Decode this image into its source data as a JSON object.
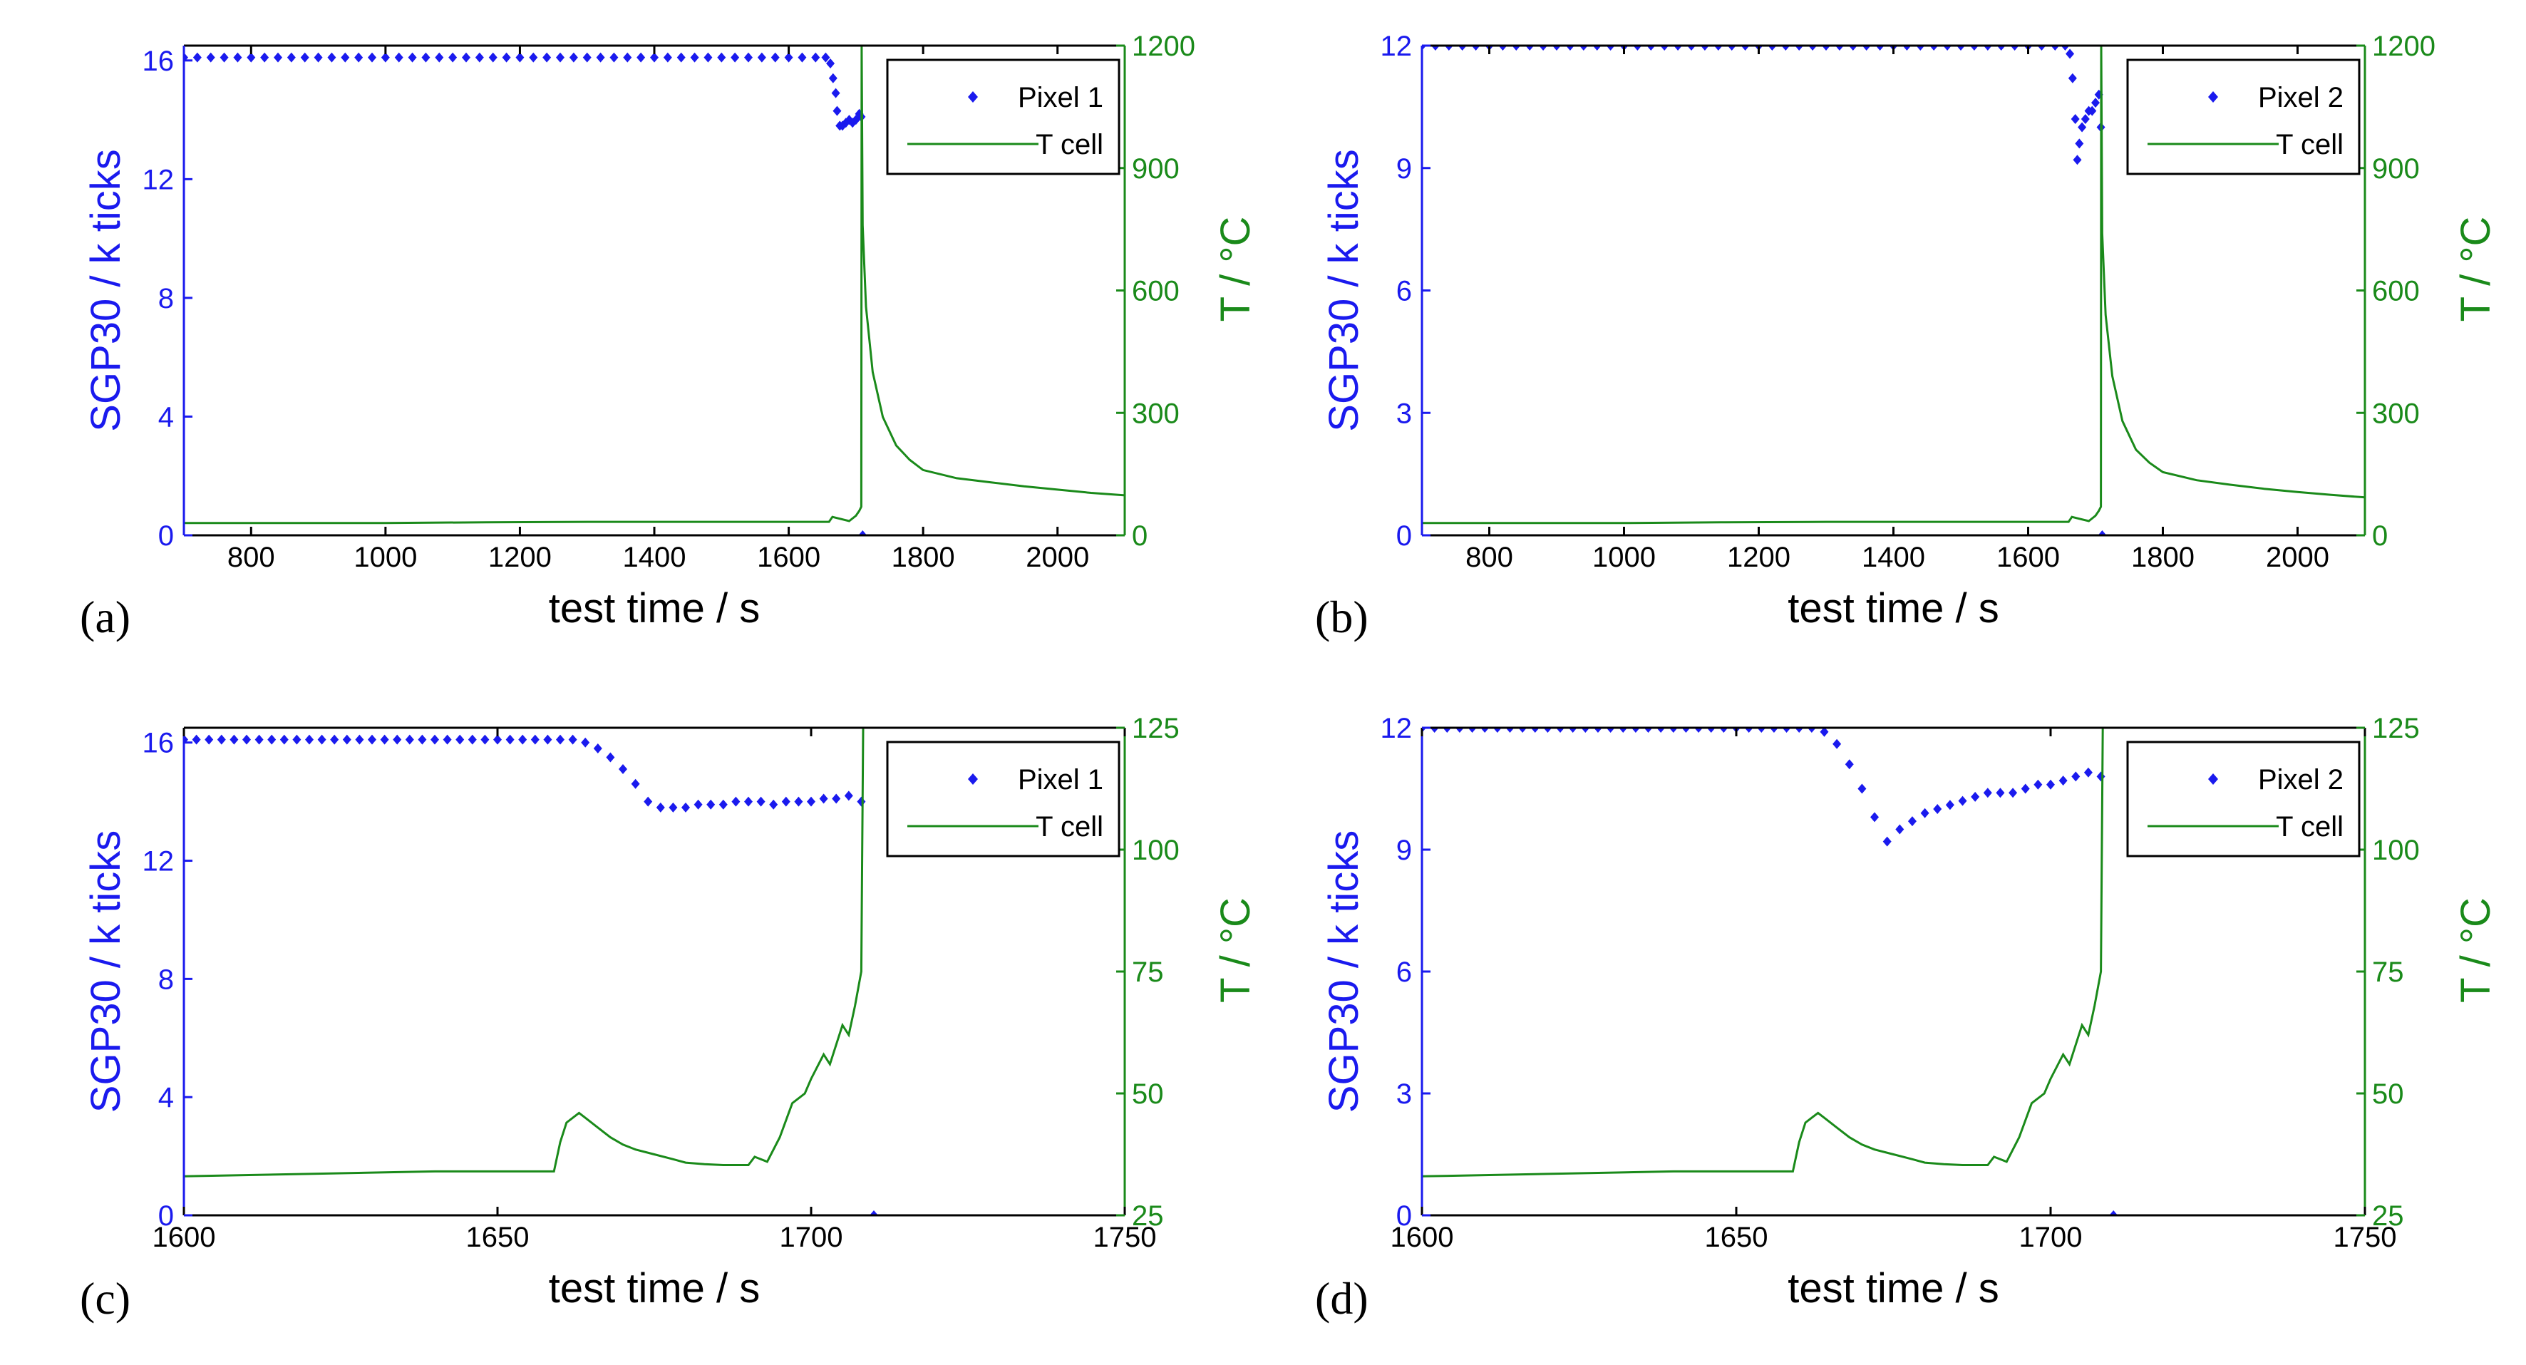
{
  "colors": {
    "left": "#1a1aee",
    "right": "#1a8a1a",
    "axis": "#000000",
    "frame": "#000000"
  },
  "chart_data": [
    {
      "panel_label": "(a)",
      "type": "line",
      "xlabel": "test time / s",
      "ylabel_left": "SGP30 / k ticks",
      "ylabel_right": "T / °C",
      "xlim": [
        700,
        2100
      ],
      "xticks": [
        800,
        1000,
        1200,
        1400,
        1600,
        1800,
        2000
      ],
      "xtick_labels": [
        "800",
        "1000",
        "1200",
        "1400",
        "1600",
        "1800",
        "2000"
      ],
      "ylim_left": [
        0,
        16.5
      ],
      "yticks_left": [
        0,
        4,
        8,
        12,
        16
      ],
      "ytick_labels_left": [
        "0",
        "4",
        "8",
        "12",
        "16"
      ],
      "ylim_right": [
        0,
        1200
      ],
      "yticks_right": [
        0,
        300,
        600,
        900,
        1200
      ],
      "ytick_labels_right": [
        "0",
        "300",
        "600",
        "900",
        "1200"
      ],
      "legend": [
        "Pixel 1",
        "T cell"
      ],
      "legend_position": "top-right",
      "series": [
        {
          "name": "Pixel 1",
          "kind": "markers",
          "axis": "left",
          "x": [
            700,
            720,
            740,
            760,
            780,
            800,
            820,
            840,
            860,
            880,
            900,
            920,
            940,
            960,
            980,
            1000,
            1020,
            1040,
            1060,
            1080,
            1100,
            1120,
            1140,
            1160,
            1180,
            1200,
            1220,
            1240,
            1260,
            1280,
            1300,
            1320,
            1340,
            1360,
            1380,
            1400,
            1420,
            1440,
            1460,
            1480,
            1500,
            1520,
            1540,
            1560,
            1580,
            1600,
            1620,
            1640,
            1655,
            1662,
            1666,
            1670,
            1672,
            1676,
            1680,
            1685,
            1690,
            1695,
            1700,
            1705,
            1708,
            1710
          ],
          "y": [
            16.1,
            16.1,
            16.1,
            16.1,
            16.1,
            16.1,
            16.1,
            16.1,
            16.1,
            16.1,
            16.1,
            16.1,
            16.1,
            16.1,
            16.1,
            16.1,
            16.1,
            16.1,
            16.1,
            16.1,
            16.1,
            16.1,
            16.1,
            16.1,
            16.1,
            16.1,
            16.1,
            16.1,
            16.1,
            16.1,
            16.1,
            16.1,
            16.1,
            16.1,
            16.1,
            16.1,
            16.1,
            16.1,
            16.1,
            16.1,
            16.1,
            16.1,
            16.1,
            16.1,
            16.1,
            16.1,
            16.1,
            16.1,
            16.1,
            15.9,
            15.4,
            14.9,
            14.3,
            13.8,
            13.8,
            13.9,
            14.0,
            13.9,
            14.0,
            14.2,
            14.1,
            0
          ]
        },
        {
          "name": "T cell",
          "kind": "line",
          "axis": "right",
          "x": [
            700,
            1000,
            1150,
            1300,
            1500,
            1660,
            1665,
            1690,
            1700,
            1705,
            1708,
            1708.5,
            1710,
            1715,
            1725,
            1740,
            1760,
            1780,
            1800,
            1850,
            1900,
            1950,
            2000,
            2050,
            2100
          ],
          "y": [
            30,
            30,
            32,
            33,
            33,
            33,
            45,
            35,
            48,
            60,
            70,
            1200,
            760,
            560,
            400,
            290,
            220,
            185,
            160,
            140,
            130,
            120,
            112,
            104,
            98
          ]
        }
      ]
    },
    {
      "panel_label": "(b)",
      "type": "line",
      "xlabel": "test time / s",
      "ylabel_left": "SGP30 / k ticks",
      "ylabel_right": "T / °C",
      "xlim": [
        700,
        2100
      ],
      "xticks": [
        800,
        1000,
        1200,
        1400,
        1600,
        1800,
        2000
      ],
      "xtick_labels": [
        "800",
        "1000",
        "1200",
        "1400",
        "1600",
        "1800",
        "2000"
      ],
      "ylim_left": [
        0,
        12
      ],
      "yticks_left": [
        0,
        3,
        6,
        9,
        12
      ],
      "ytick_labels_left": [
        "0",
        "3",
        "6",
        "9",
        "12"
      ],
      "ylim_right": [
        0,
        1200
      ],
      "yticks_right": [
        0,
        300,
        600,
        900,
        1200
      ],
      "ytick_labels_right": [
        "0",
        "300",
        "600",
        "900",
        "1200"
      ],
      "legend": [
        "Pixel 2",
        "T cell"
      ],
      "legend_position": "top-right",
      "series": [
        {
          "name": "Pixel 2",
          "kind": "markers",
          "axis": "left",
          "x": [
            700,
            720,
            740,
            760,
            780,
            800,
            820,
            840,
            860,
            880,
            900,
            920,
            940,
            960,
            980,
            1000,
            1020,
            1040,
            1060,
            1080,
            1100,
            1120,
            1140,
            1160,
            1180,
            1200,
            1220,
            1240,
            1260,
            1280,
            1300,
            1320,
            1340,
            1360,
            1380,
            1400,
            1420,
            1440,
            1460,
            1480,
            1500,
            1520,
            1540,
            1560,
            1580,
            1600,
            1620,
            1640,
            1655,
            1662,
            1666,
            1670,
            1673,
            1676,
            1680,
            1685,
            1690,
            1695,
            1700,
            1705,
            1708,
            1710
          ],
          "y": [
            12.0,
            12.0,
            12.0,
            12.0,
            12.0,
            12.0,
            12.0,
            12.0,
            12.0,
            12.0,
            12.0,
            12.0,
            12.0,
            12.0,
            12.0,
            12.0,
            12.0,
            12.0,
            12.0,
            12.0,
            12.0,
            12.0,
            12.0,
            12.0,
            12.0,
            12.0,
            12.0,
            12.0,
            12.0,
            12.0,
            12.0,
            12.0,
            12.0,
            12.0,
            12.0,
            12.0,
            12.0,
            12.0,
            12.0,
            12.0,
            12.0,
            12.0,
            12.0,
            12.0,
            12.0,
            12.0,
            12.0,
            12.0,
            12.0,
            11.8,
            11.2,
            10.2,
            9.2,
            9.6,
            10.0,
            10.2,
            10.4,
            10.4,
            10.6,
            10.8,
            10.0,
            0
          ]
        },
        {
          "name": "T cell",
          "kind": "line",
          "axis": "right",
          "x": [
            700,
            1000,
            1150,
            1300,
            1500,
            1660,
            1665,
            1690,
            1700,
            1705,
            1708,
            1708.5,
            1710,
            1715,
            1725,
            1740,
            1760,
            1780,
            1800,
            1850,
            1900,
            1950,
            2000,
            2050,
            2100
          ],
          "y": [
            30,
            30,
            32,
            33,
            33,
            33,
            45,
            35,
            48,
            60,
            70,
            1200,
            740,
            540,
            390,
            280,
            210,
            178,
            155,
            135,
            124,
            114,
            106,
            99,
            93
          ]
        }
      ]
    },
    {
      "panel_label": "(c)",
      "type": "line",
      "xlabel": "test time / s",
      "ylabel_left": "SGP30 / k ticks",
      "ylabel_right": "T / °C",
      "xlim": [
        1600,
        1750
      ],
      "xticks": [
        1600,
        1650,
        1700,
        1750
      ],
      "xtick_labels": [
        "1600",
        "1650",
        "1700",
        "1750"
      ],
      "ylim_left": [
        0,
        16.5
      ],
      "yticks_left": [
        0,
        4,
        8,
        12,
        16
      ],
      "ytick_labels_left": [
        "0",
        "4",
        "8",
        "12",
        "16"
      ],
      "ylim_right": [
        25,
        125
      ],
      "yticks_right": [
        25,
        50,
        75,
        100,
        125
      ],
      "ytick_labels_right": [
        "25",
        "50",
        "75",
        "100",
        "125"
      ],
      "legend": [
        "Pixel 1",
        "T cell"
      ],
      "legend_position": "top-right",
      "series": [
        {
          "name": "Pixel 1",
          "kind": "markers",
          "axis": "left",
          "x": [
            1600,
            1602,
            1604,
            1606,
            1608,
            1610,
            1612,
            1614,
            1616,
            1618,
            1620,
            1622,
            1624,
            1626,
            1628,
            1630,
            1632,
            1634,
            1636,
            1638,
            1640,
            1642,
            1644,
            1646,
            1648,
            1650,
            1652,
            1654,
            1656,
            1658,
            1660,
            1662,
            1664,
            1666,
            1668,
            1670,
            1672,
            1674,
            1676,
            1678,
            1680,
            1682,
            1684,
            1686,
            1688,
            1690,
            1692,
            1694,
            1696,
            1698,
            1700,
            1702,
            1704,
            1706,
            1708,
            1710
          ],
          "y": [
            16.1,
            16.1,
            16.1,
            16.1,
            16.1,
            16.1,
            16.1,
            16.1,
            16.1,
            16.1,
            16.1,
            16.1,
            16.1,
            16.1,
            16.1,
            16.1,
            16.1,
            16.1,
            16.1,
            16.1,
            16.1,
            16.1,
            16.1,
            16.1,
            16.1,
            16.1,
            16.1,
            16.1,
            16.1,
            16.1,
            16.1,
            16.1,
            16.0,
            15.8,
            15.5,
            15.1,
            14.6,
            14.0,
            13.8,
            13.8,
            13.8,
            13.9,
            13.9,
            13.9,
            14.0,
            14.0,
            14.0,
            13.9,
            14.0,
            14.0,
            14.0,
            14.1,
            14.1,
            14.2,
            14.0,
            0
          ]
        },
        {
          "name": "T cell",
          "kind": "line",
          "axis": "right",
          "x": [
            1600,
            1620,
            1640,
            1659,
            1660,
            1661,
            1662,
            1663,
            1664,
            1666,
            1668,
            1670,
            1672,
            1675,
            1678,
            1680,
            1683,
            1686,
            1688,
            1690,
            1691,
            1693,
            1695,
            1697,
            1699,
            1700,
            1702,
            1703,
            1705,
            1706,
            1707,
            1708,
            1708.3
          ],
          "y": [
            33,
            33.5,
            34,
            34,
            40,
            44,
            45,
            46,
            45,
            43,
            41,
            39.5,
            38.5,
            37.5,
            36.5,
            35.8,
            35.5,
            35.3,
            35.3,
            35.3,
            37,
            36,
            41,
            48,
            50,
            53,
            58,
            56,
            64,
            62,
            68,
            75,
            125
          ]
        }
      ]
    },
    {
      "panel_label": "(d)",
      "type": "line",
      "xlabel": "test time / s",
      "ylabel_left": "SGP30 / k ticks",
      "ylabel_right": "T / °C",
      "xlim": [
        1600,
        1750
      ],
      "xticks": [
        1600,
        1650,
        1700,
        1750
      ],
      "xtick_labels": [
        "1600",
        "1650",
        "1700",
        "1750"
      ],
      "ylim_left": [
        0,
        12
      ],
      "yticks_left": [
        0,
        3,
        6,
        9,
        12
      ],
      "ytick_labels_left": [
        "0",
        "3",
        "6",
        "9",
        "12"
      ],
      "ylim_right": [
        25,
        125
      ],
      "yticks_right": [
        25,
        50,
        75,
        100,
        125
      ],
      "ytick_labels_right": [
        "25",
        "50",
        "75",
        "100",
        "125"
      ],
      "legend": [
        "Pixel 2",
        "T cell"
      ],
      "legend_position": "top-right",
      "series": [
        {
          "name": "Pixel 2",
          "kind": "markers",
          "axis": "left",
          "x": [
            1600,
            1602,
            1604,
            1606,
            1608,
            1610,
            1612,
            1614,
            1616,
            1618,
            1620,
            1622,
            1624,
            1626,
            1628,
            1630,
            1632,
            1634,
            1636,
            1638,
            1640,
            1642,
            1644,
            1646,
            1648,
            1650,
            1652,
            1654,
            1656,
            1658,
            1660,
            1662,
            1664,
            1666,
            1668,
            1670,
            1672,
            1674,
            1676,
            1678,
            1680,
            1682,
            1684,
            1686,
            1688,
            1690,
            1692,
            1694,
            1696,
            1698,
            1700,
            1702,
            1704,
            1706,
            1708,
            1710
          ],
          "y": [
            12.0,
            12.0,
            12.0,
            12.0,
            12.0,
            12.0,
            12.0,
            12.0,
            12.0,
            12.0,
            12.0,
            12.0,
            12.0,
            12.0,
            12.0,
            12.0,
            12.0,
            12.0,
            12.0,
            12.0,
            12.0,
            12.0,
            12.0,
            12.0,
            12.0,
            12.0,
            12.0,
            12.0,
            12.0,
            12.0,
            12.0,
            12.0,
            11.9,
            11.6,
            11.1,
            10.5,
            9.8,
            9.2,
            9.5,
            9.7,
            9.9,
            10.0,
            10.1,
            10.2,
            10.3,
            10.4,
            10.4,
            10.4,
            10.5,
            10.6,
            10.6,
            10.7,
            10.8,
            10.9,
            10.8,
            0
          ]
        },
        {
          "name": "T cell",
          "kind": "line",
          "axis": "right",
          "x": [
            1600,
            1620,
            1640,
            1659,
            1660,
            1661,
            1662,
            1663,
            1664,
            1666,
            1668,
            1670,
            1672,
            1675,
            1678,
            1680,
            1683,
            1686,
            1688,
            1690,
            1691,
            1693,
            1695,
            1697,
            1699,
            1700,
            1702,
            1703,
            1705,
            1706,
            1707,
            1708,
            1708.3
          ],
          "y": [
            33,
            33.5,
            34,
            34,
            40,
            44,
            45,
            46,
            45,
            43,
            41,
            39.5,
            38.5,
            37.5,
            36.5,
            35.8,
            35.5,
            35.3,
            35.3,
            35.3,
            37,
            36,
            41,
            48,
            50,
            53,
            58,
            56,
            64,
            62,
            68,
            75,
            125
          ]
        }
      ]
    }
  ]
}
